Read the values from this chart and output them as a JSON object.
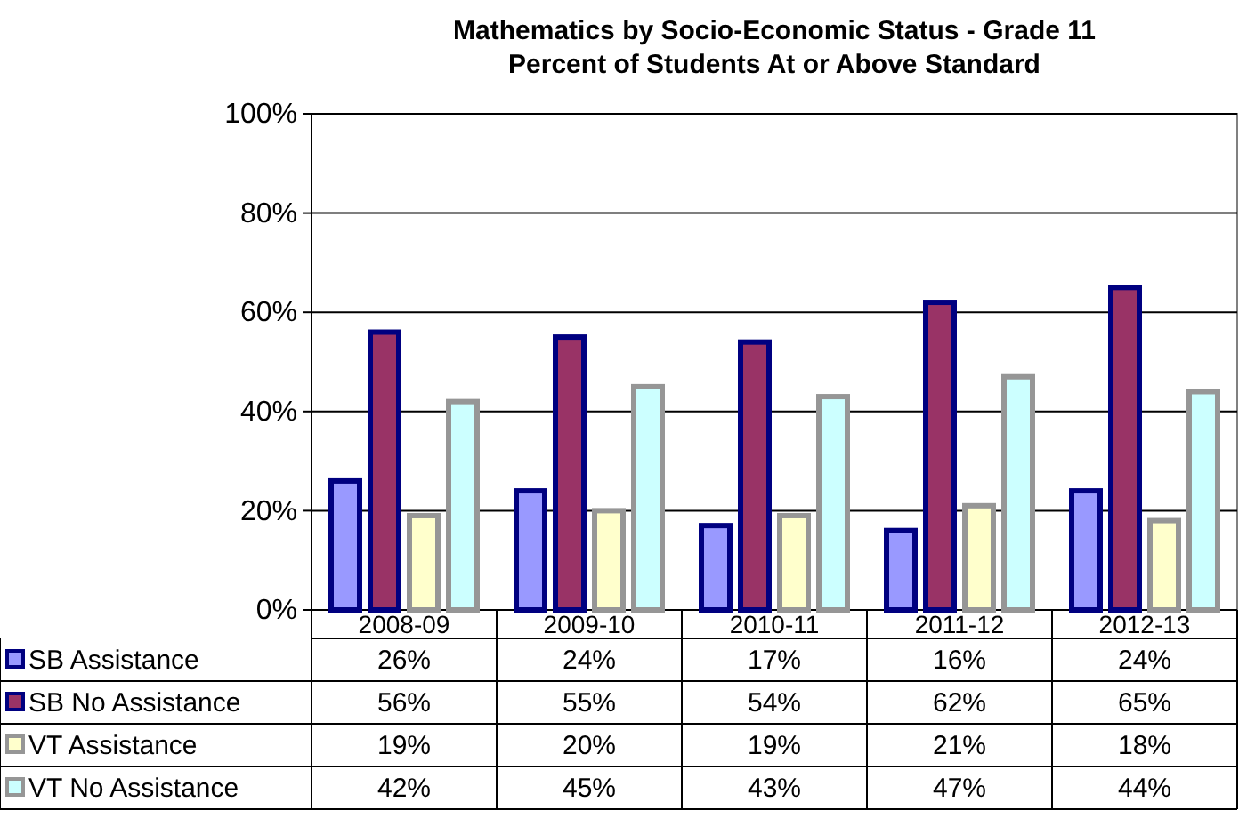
{
  "chart_data": {
    "type": "bar",
    "title": "Mathematics by Socio-Economic Status - Grade 11",
    "subtitle": "Percent of Students At or Above Standard",
    "categories": [
      "2008-09",
      "2009-10",
      "2010-11",
      "2011-12",
      "2012-13"
    ],
    "series": [
      {
        "name": "SB Assistance",
        "color": "#9999ff",
        "values": [
          26,
          24,
          17,
          16,
          24
        ],
        "value_labels": [
          "26%",
          "24%",
          "17%",
          "16%",
          "24%"
        ]
      },
      {
        "name": "SB No Assistance",
        "color": "#993366",
        "values": [
          56,
          55,
          54,
          62,
          65
        ],
        "value_labels": [
          "56%",
          "55%",
          "54%",
          "62%",
          "65%"
        ]
      },
      {
        "name": "VT Assistance",
        "color": "#ffffcc",
        "values": [
          19,
          20,
          19,
          21,
          18
        ],
        "value_labels": [
          "19%",
          "20%",
          "19%",
          "21%",
          "18%"
        ]
      },
      {
        "name": "VT No Assistance",
        "color": "#ccffff",
        "values": [
          42,
          45,
          43,
          47,
          44
        ],
        "value_labels": [
          "42%",
          "45%",
          "43%",
          "47%",
          "44%"
        ]
      }
    ],
    "ylim": [
      0,
      100
    ],
    "yticks": [
      {
        "value": 0,
        "label": "0%"
      },
      {
        "value": 20,
        "label": "20%"
      },
      {
        "value": 40,
        "label": "40%"
      },
      {
        "value": 60,
        "label": "60%"
      },
      {
        "value": 80,
        "label": "80%"
      },
      {
        "value": 100,
        "label": "100%"
      }
    ],
    "grid": "y",
    "legend": "bottom"
  }
}
